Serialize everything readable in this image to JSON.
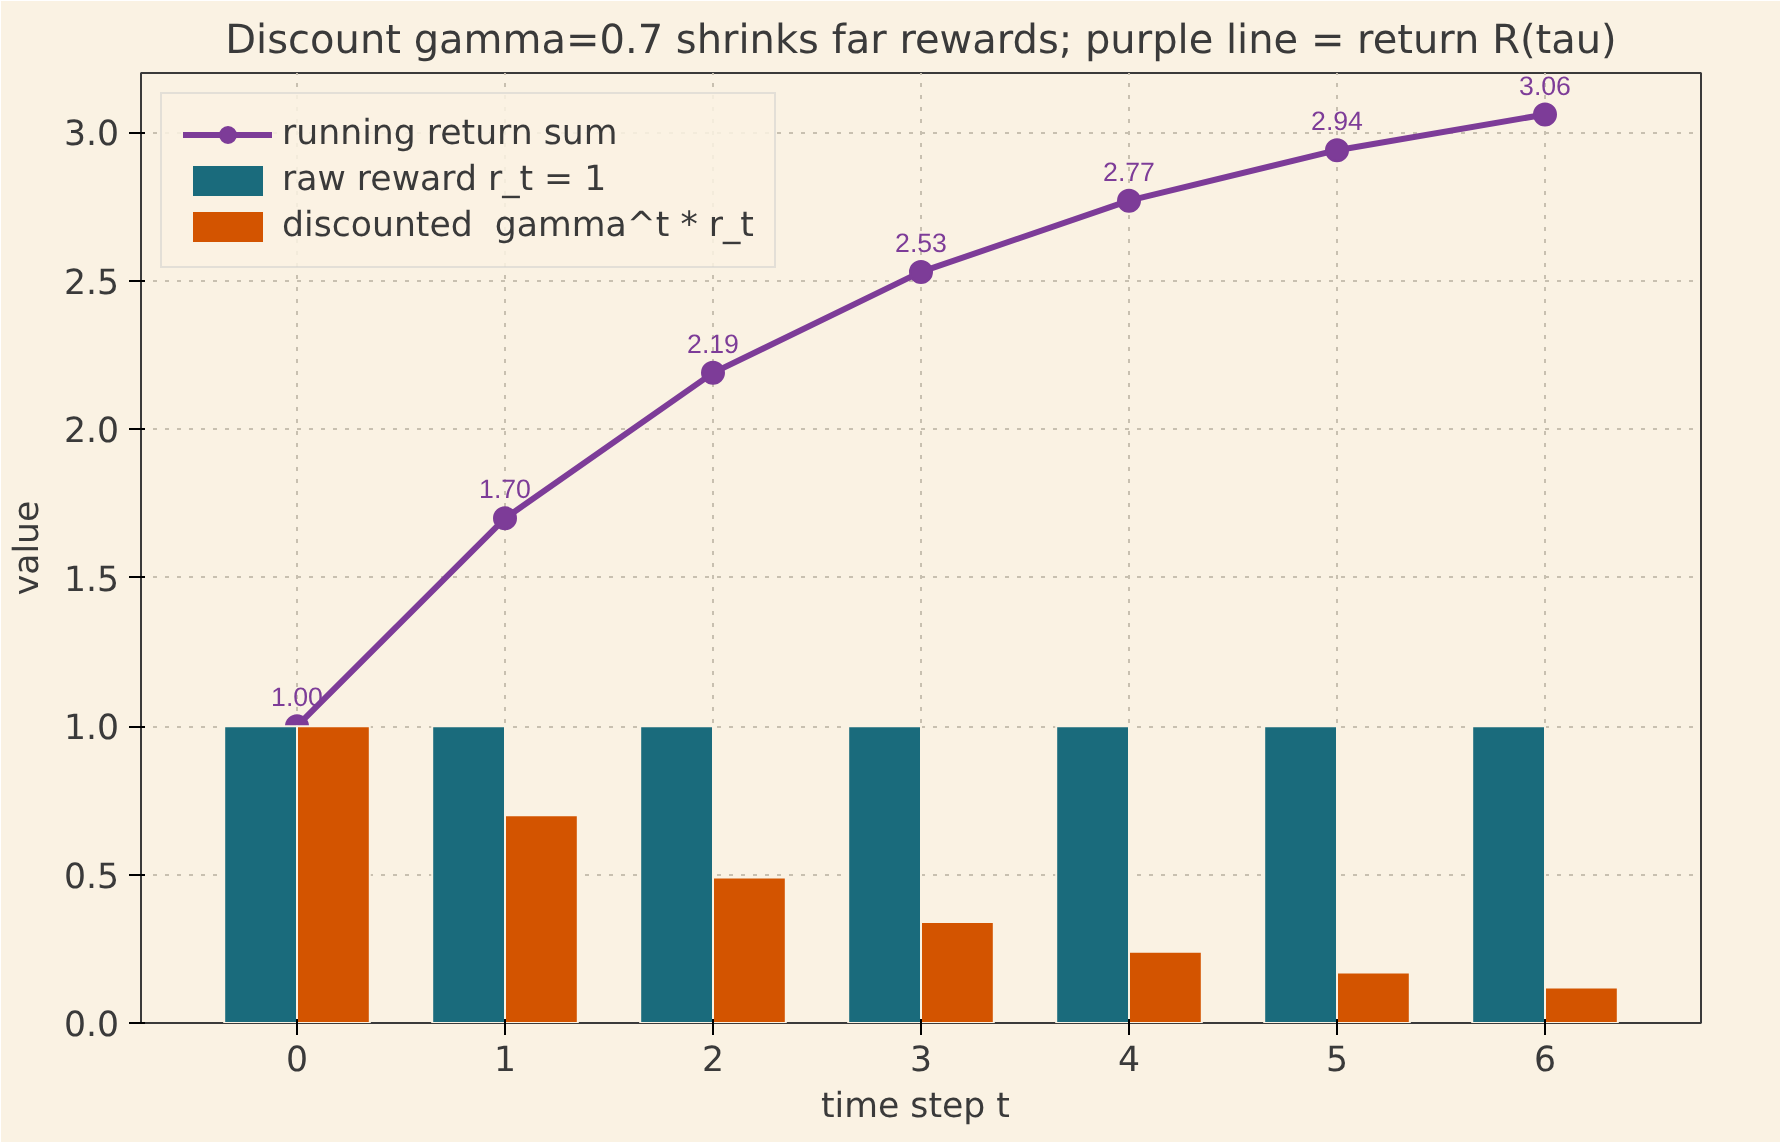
{
  "chart_data": {
    "type": "bar",
    "title": "Discount gamma=0.7 shrinks far rewards; purple line = return R(tau)",
    "xlabel": "time step  t",
    "ylabel": "value",
    "x": [
      0,
      1,
      2,
      3,
      4,
      5,
      6
    ],
    "series": [
      {
        "type": "line",
        "name": "running return sum",
        "color": "#7d3c98",
        "values": [
          1.0,
          1.7,
          2.19,
          2.53,
          2.77,
          2.94,
          3.06
        ],
        "value_labels": [
          "1.00",
          "1.70",
          "2.19",
          "2.53",
          "2.77",
          "2.94",
          "3.06"
        ],
        "marker": "circle"
      },
      {
        "name": "raw reward r_t = 1",
        "color": "#1a6b7c",
        "values": [
          1,
          1,
          1,
          1,
          1,
          1,
          1
        ]
      },
      {
        "name": "discounted  gamma^t * r_t",
        "color": "#d35400",
        "values": [
          1.0,
          0.7,
          0.49,
          0.34,
          0.24,
          0.17,
          0.12
        ]
      }
    ],
    "xlim": [
      -0.75,
      6.75
    ],
    "xticks": [
      0,
      1,
      2,
      3,
      4,
      5,
      6
    ],
    "ylim": [
      0,
      3.2
    ],
    "yticks": [
      {
        "value": 0,
        "label": "0.0"
      },
      {
        "value": 0.5,
        "label": "0.5"
      },
      {
        "value": 1,
        "label": "1.0"
      },
      {
        "value": 1.5,
        "label": "1.5"
      },
      {
        "value": 2,
        "label": "2.0"
      },
      {
        "value": 2.5,
        "label": "2.5"
      },
      {
        "value": 3,
        "label": "3.0"
      }
    ],
    "grid": true,
    "legend": "top left"
  }
}
